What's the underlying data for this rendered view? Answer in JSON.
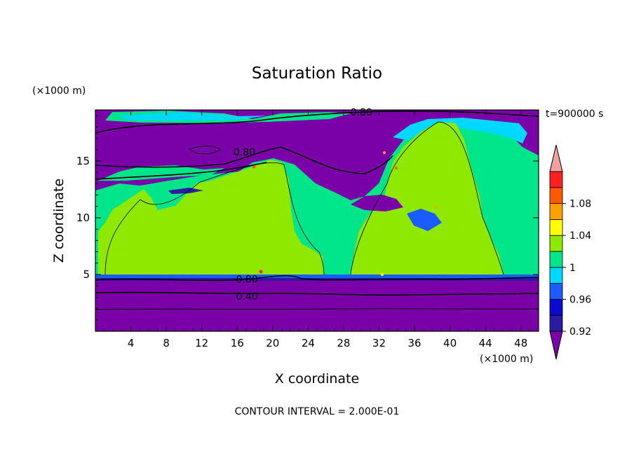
{
  "chart_data": {
    "type": "heatmap",
    "title": "Saturation Ratio",
    "xlabel": "X coordinate",
    "ylabel": "Z coordinate",
    "x_unit": "(×1000 m)",
    "y_unit": "(×1000 m)",
    "time_label": "t=900000 s",
    "footer": "CONTOUR INTERVAL = 2.000E-01",
    "xlim": [
      0,
      50
    ],
    "ylim": [
      0,
      19.5
    ],
    "x_ticks": [
      4,
      8,
      12,
      16,
      20,
      24,
      28,
      32,
      36,
      40,
      44,
      48
    ],
    "y_ticks": [
      5,
      10,
      15
    ],
    "colorbar": {
      "levels": [
        0.92,
        0.94,
        0.96,
        0.98,
        1,
        1.02,
        1.04,
        1.06,
        1.08,
        1.1
      ],
      "tick_labels": [
        {
          "value": 0.92,
          "label": "0.92"
        },
        {
          "value": 0.96,
          "label": "0.96"
        },
        {
          "value": 1,
          "label": "1"
        },
        {
          "value": 1.04,
          "label": "1.04"
        },
        {
          "value": 1.08,
          "label": "1.08"
        }
      ],
      "colors": [
        "#2b1ba0",
        "#0a0ad0",
        "#1a5cff",
        "#00d8ff",
        "#00e48a",
        "#8ee800",
        "#ffff00",
        "#ffa000",
        "#ff5a00",
        "#ff2020"
      ],
      "under_color": "#7a00a8",
      "over_color": "#f2a0a0"
    },
    "contour_labels": [
      {
        "text": "0.80",
        "x": 30.0,
        "y": 19.3
      },
      {
        "text": "0.80",
        "x": 16.8,
        "y": 15.8
      },
      {
        "text": "0.80",
        "x": 17.1,
        "y": 4.6
      },
      {
        "text": "0.40",
        "x": 17.1,
        "y": 3.1
      }
    ]
  }
}
